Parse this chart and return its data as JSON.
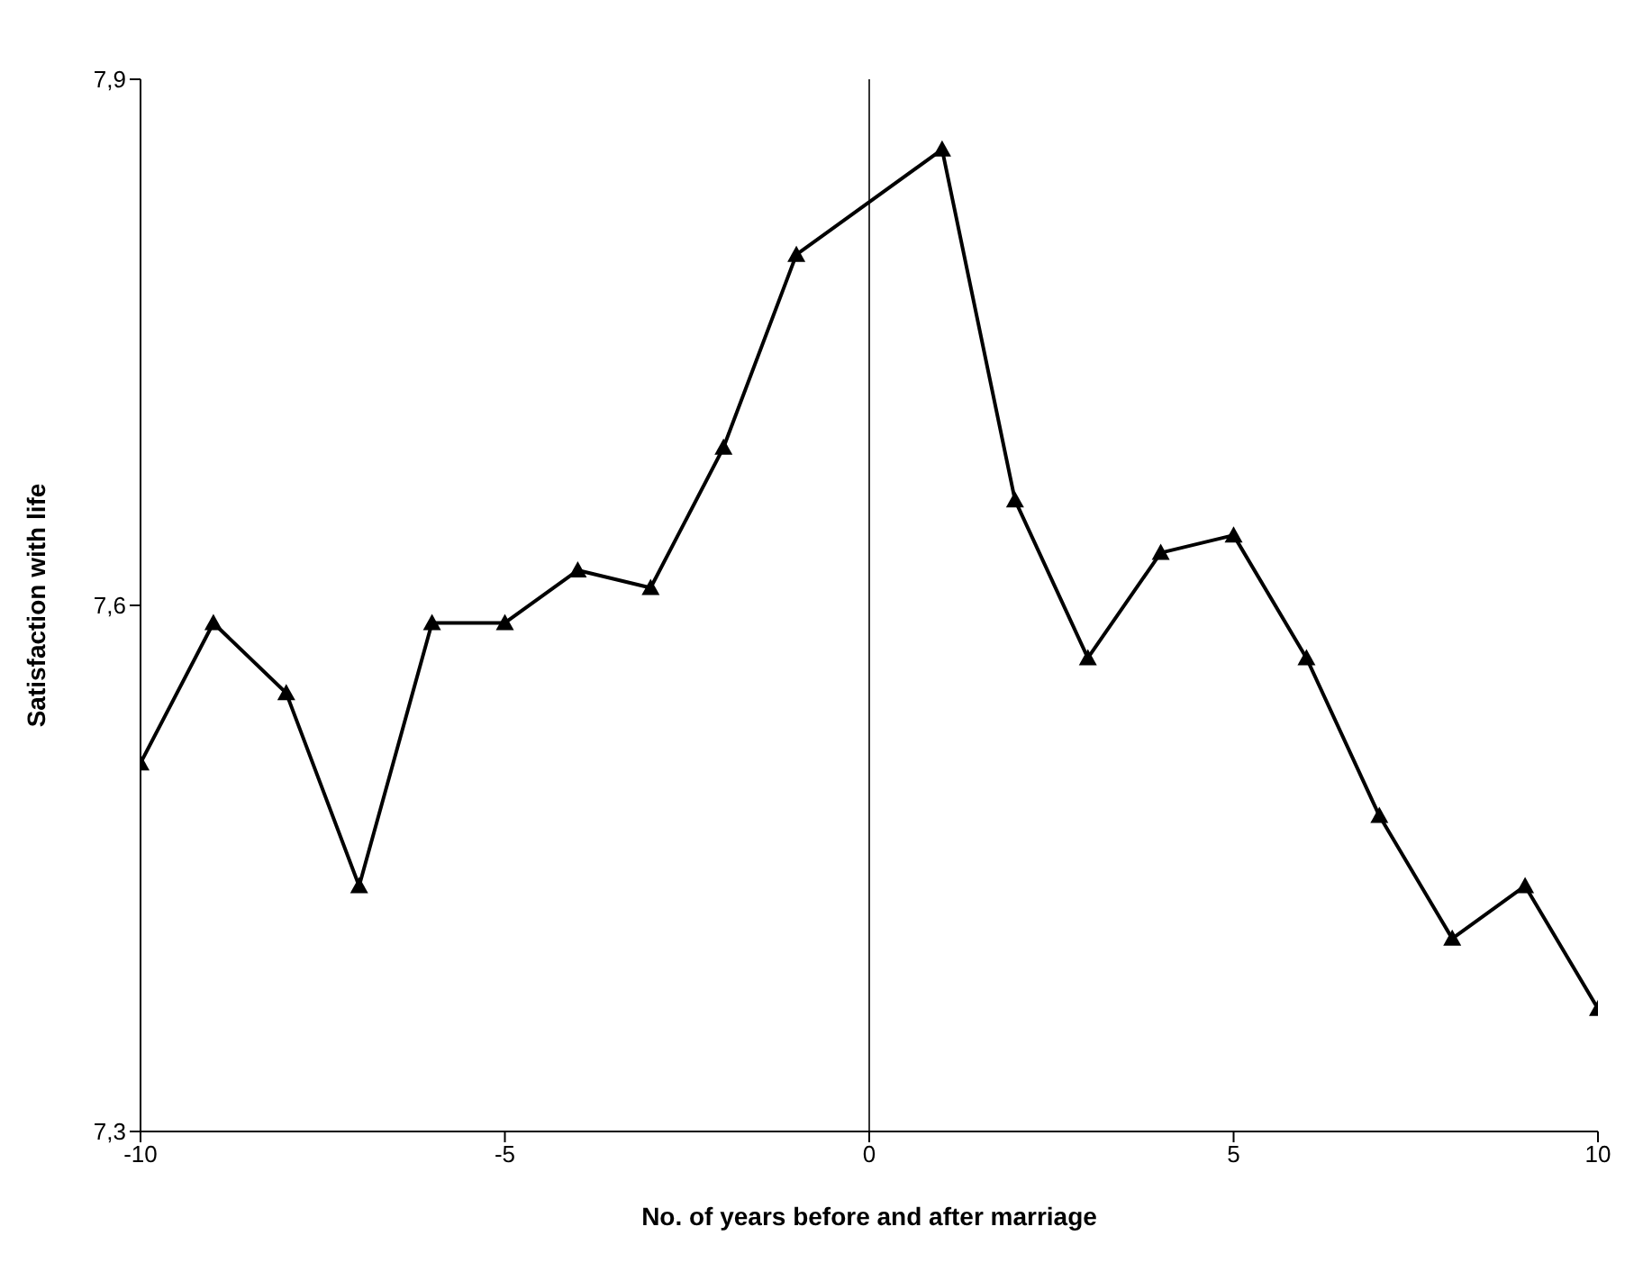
{
  "chart_data": {
    "type": "line",
    "xlabel": "No. of years before and after marriage",
    "ylabel": "Satisfaction with life",
    "x": [
      -10,
      -9,
      -8,
      -7,
      -6,
      -5,
      -4,
      -3,
      -2,
      -1,
      1,
      2,
      3,
      4,
      5,
      6,
      7,
      8,
      9,
      10
    ],
    "series": [
      {
        "color": "#000000",
        "values": [
          7.51,
          7.59,
          7.55,
          7.44,
          7.59,
          7.59,
          7.62,
          7.61,
          7.69,
          7.8,
          7.86,
          7.66,
          7.57,
          7.63,
          7.64,
          7.57,
          7.48,
          7.41,
          7.44,
          7.37
        ]
      }
    ],
    "xlim": [
      -10,
      10
    ],
    "xticks": [
      -10,
      -5,
      0,
      5,
      10
    ],
    "ylim": [
      7.3,
      7.9
    ],
    "yticks": [
      {
        "value": 7.3,
        "label": "7,3"
      },
      {
        "value": 7.6,
        "label": "7,6"
      },
      {
        "value": 7.9,
        "label": "7,9"
      }
    ],
    "ref_lines": [
      {
        "axis": "x",
        "value": 0,
        "color": "#000000"
      }
    ],
    "marker": "triangle",
    "line_style": "solid",
    "grid": false,
    "legend": false
  }
}
